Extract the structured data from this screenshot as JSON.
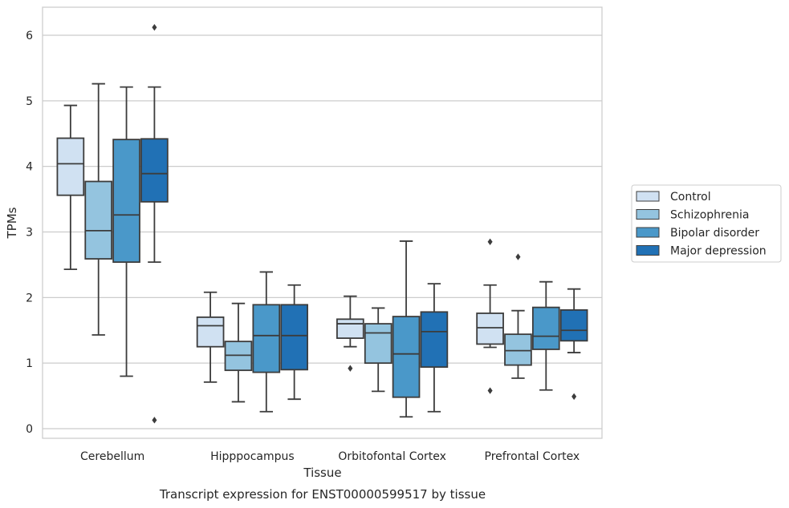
{
  "chart_data": {
    "type": "box",
    "caption": "Transcript expression for ENST00000599517 by tissue",
    "xlabel": "Tissue",
    "ylabel": "TPMs",
    "ylim": [
      -0.15,
      6.4
    ],
    "yticks": [
      0,
      1,
      2,
      3,
      4,
      5,
      6
    ],
    "grid": "horizontal",
    "legend_position": "right",
    "categories": [
      "Cerebellum",
      "Hipppocampus",
      "Orbitofontal Cortex",
      "Prefrontal Cortex"
    ],
    "series": [
      {
        "name": "Control",
        "color": "#d0e1f2",
        "boxes": [
          {
            "whislo": 2.43,
            "q1": 3.56,
            "med": 4.04,
            "q3": 4.43,
            "whishi": 4.93,
            "fliers": []
          },
          {
            "whislo": 0.71,
            "q1": 1.25,
            "med": 1.57,
            "q3": 1.7,
            "whishi": 2.08,
            "fliers": []
          },
          {
            "whislo": 1.25,
            "q1": 1.38,
            "med": 1.6,
            "q3": 1.67,
            "whishi": 2.02,
            "fliers": [
              0.92
            ]
          },
          {
            "whislo": 1.24,
            "q1": 1.29,
            "med": 1.54,
            "q3": 1.76,
            "whishi": 2.19,
            "fliers": [
              2.85,
              0.58
            ]
          }
        ]
      },
      {
        "name": "Schizophrenia",
        "color": "#94c4df",
        "boxes": [
          {
            "whislo": 1.43,
            "q1": 2.59,
            "med": 3.02,
            "q3": 3.77,
            "whishi": 5.26,
            "fliers": []
          },
          {
            "whislo": 0.41,
            "q1": 0.89,
            "med": 1.12,
            "q3": 1.33,
            "whishi": 1.91,
            "fliers": []
          },
          {
            "whislo": 0.57,
            "q1": 1.0,
            "med": 1.46,
            "q3": 1.6,
            "whishi": 1.84,
            "fliers": []
          },
          {
            "whislo": 0.77,
            "q1": 0.97,
            "med": 1.19,
            "q3": 1.44,
            "whishi": 1.8,
            "fliers": [
              2.62
            ]
          }
        ]
      },
      {
        "name": "Bipolar disorder",
        "color": "#4a98c9",
        "boxes": [
          {
            "whislo": 0.8,
            "q1": 2.54,
            "med": 3.26,
            "q3": 4.41,
            "whishi": 5.21,
            "fliers": []
          },
          {
            "whislo": 0.26,
            "q1": 0.86,
            "med": 1.42,
            "q3": 1.89,
            "whishi": 2.39,
            "fliers": []
          },
          {
            "whislo": 0.18,
            "q1": 0.48,
            "med": 1.14,
            "q3": 1.71,
            "whishi": 2.86,
            "fliers": []
          },
          {
            "whislo": 0.59,
            "q1": 1.21,
            "med": 1.41,
            "q3": 1.85,
            "whishi": 2.24,
            "fliers": []
          }
        ]
      },
      {
        "name": "Major depression",
        "color": "#2171b5",
        "boxes": [
          {
            "whislo": 2.54,
            "q1": 3.46,
            "med": 3.89,
            "q3": 4.42,
            "whishi": 5.21,
            "fliers": [
              6.12,
              0.13
            ]
          },
          {
            "whislo": 0.45,
            "q1": 0.9,
            "med": 1.42,
            "q3": 1.89,
            "whishi": 2.19,
            "fliers": []
          },
          {
            "whislo": 0.26,
            "q1": 0.94,
            "med": 1.48,
            "q3": 1.78,
            "whishi": 2.21,
            "fliers": []
          },
          {
            "whislo": 1.16,
            "q1": 1.34,
            "med": 1.5,
            "q3": 1.81,
            "whishi": 2.13,
            "fliers": [
              0.49
            ]
          }
        ]
      }
    ]
  }
}
